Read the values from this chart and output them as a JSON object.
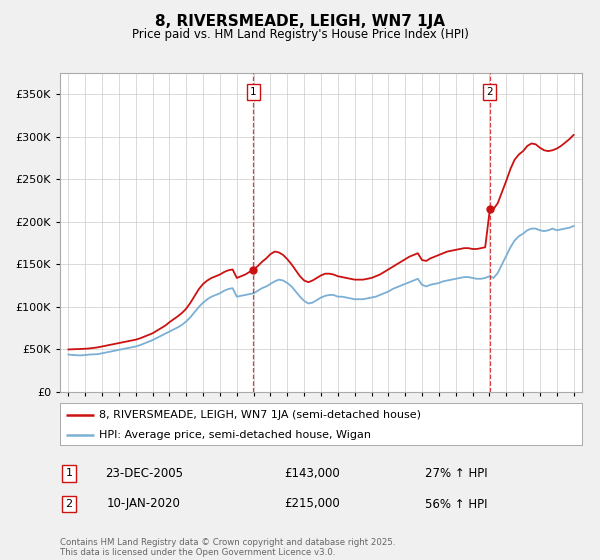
{
  "title": "8, RIVERSMEADE, LEIGH, WN7 1JA",
  "subtitle": "Price paid vs. HM Land Registry's House Price Index (HPI)",
  "ytick_values": [
    0,
    50000,
    100000,
    150000,
    200000,
    250000,
    300000,
    350000
  ],
  "ylim": [
    0,
    375000
  ],
  "xlim_start": 1994.5,
  "xlim_end": 2025.5,
  "sale1_date": 2005.98,
  "sale1_price": 143000,
  "sale1_label": "1",
  "sale2_date": 2020.03,
  "sale2_price": 215000,
  "sale2_label": "2",
  "hpi_color": "#7bafd4",
  "price_color": "#cc1111",
  "vline_color": "#cc1111",
  "legend_house": "8, RIVERSMEADE, LEIGH, WN7 1JA (semi-detached house)",
  "legend_hpi": "HPI: Average price, semi-detached house, Wigan",
  "annotation1_date": "23-DEC-2005",
  "annotation1_price": "£143,000",
  "annotation1_hpi": "27% ↑ HPI",
  "annotation2_date": "10-JAN-2020",
  "annotation2_price": "£215,000",
  "annotation2_hpi": "56% ↑ HPI",
  "footnote": "Contains HM Land Registry data © Crown copyright and database right 2025.\nThis data is licensed under the Open Government Licence v3.0.",
  "bg_color": "#f0f0f0",
  "plot_bg_color": "#ffffff",
  "hpi_data": [
    [
      1995.0,
      44000
    ],
    [
      1995.25,
      43500
    ],
    [
      1995.5,
      43200
    ],
    [
      1995.75,
      43000
    ],
    [
      1996.0,
      43500
    ],
    [
      1996.25,
      44000
    ],
    [
      1996.5,
      44200
    ],
    [
      1996.75,
      44500
    ],
    [
      1997.0,
      45500
    ],
    [
      1997.25,
      46500
    ],
    [
      1997.5,
      47500
    ],
    [
      1997.75,
      48500
    ],
    [
      1998.0,
      49500
    ],
    [
      1998.25,
      50500
    ],
    [
      1998.5,
      51500
    ],
    [
      1998.75,
      52500
    ],
    [
      1999.0,
      53500
    ],
    [
      1999.25,
      55000
    ],
    [
      1999.5,
      57000
    ],
    [
      1999.75,
      59000
    ],
    [
      2000.0,
      61000
    ],
    [
      2000.25,
      63500
    ],
    [
      2000.5,
      66000
    ],
    [
      2000.75,
      68500
    ],
    [
      2001.0,
      71000
    ],
    [
      2001.25,
      73500
    ],
    [
      2001.5,
      76000
    ],
    [
      2001.75,
      79000
    ],
    [
      2002.0,
      83000
    ],
    [
      2002.25,
      88000
    ],
    [
      2002.5,
      94000
    ],
    [
      2002.75,
      100000
    ],
    [
      2003.0,
      105000
    ],
    [
      2003.25,
      109000
    ],
    [
      2003.5,
      112000
    ],
    [
      2003.75,
      114000
    ],
    [
      2004.0,
      116000
    ],
    [
      2004.25,
      119000
    ],
    [
      2004.5,
      121000
    ],
    [
      2004.75,
      122000
    ],
    [
      2005.0,
      112000
    ],
    [
      2005.25,
      113000
    ],
    [
      2005.5,
      114000
    ],
    [
      2005.75,
      115000
    ],
    [
      2006.0,
      116000
    ],
    [
      2006.25,
      119000
    ],
    [
      2006.5,
      122000
    ],
    [
      2006.75,
      124000
    ],
    [
      2007.0,
      127000
    ],
    [
      2007.25,
      130000
    ],
    [
      2007.5,
      132000
    ],
    [
      2007.75,
      131000
    ],
    [
      2008.0,
      128000
    ],
    [
      2008.25,
      124000
    ],
    [
      2008.5,
      118000
    ],
    [
      2008.75,
      112000
    ],
    [
      2009.0,
      107000
    ],
    [
      2009.25,
      104000
    ],
    [
      2009.5,
      105000
    ],
    [
      2009.75,
      108000
    ],
    [
      2010.0,
      111000
    ],
    [
      2010.25,
      113000
    ],
    [
      2010.5,
      114000
    ],
    [
      2010.75,
      114000
    ],
    [
      2011.0,
      112000
    ],
    [
      2011.25,
      112000
    ],
    [
      2011.5,
      111000
    ],
    [
      2011.75,
      110000
    ],
    [
      2012.0,
      109000
    ],
    [
      2012.25,
      109000
    ],
    [
      2012.5,
      109000
    ],
    [
      2012.75,
      110000
    ],
    [
      2013.0,
      111000
    ],
    [
      2013.25,
      112000
    ],
    [
      2013.5,
      114000
    ],
    [
      2013.75,
      116000
    ],
    [
      2014.0,
      118000
    ],
    [
      2014.25,
      121000
    ],
    [
      2014.5,
      123000
    ],
    [
      2014.75,
      125000
    ],
    [
      2015.0,
      127000
    ],
    [
      2015.25,
      129000
    ],
    [
      2015.5,
      131000
    ],
    [
      2015.75,
      133000
    ],
    [
      2016.0,
      126000
    ],
    [
      2016.25,
      124000
    ],
    [
      2016.5,
      126000
    ],
    [
      2016.75,
      127000
    ],
    [
      2017.0,
      128000
    ],
    [
      2017.25,
      130000
    ],
    [
      2017.5,
      131000
    ],
    [
      2017.75,
      132000
    ],
    [
      2018.0,
      133000
    ],
    [
      2018.25,
      134000
    ],
    [
      2018.5,
      135000
    ],
    [
      2018.75,
      135000
    ],
    [
      2019.0,
      134000
    ],
    [
      2019.25,
      133000
    ],
    [
      2019.5,
      133000
    ],
    [
      2019.75,
      134000
    ],
    [
      2020.0,
      136000
    ],
    [
      2020.25,
      134000
    ],
    [
      2020.5,
      140000
    ],
    [
      2020.75,
      150000
    ],
    [
      2021.0,
      160000
    ],
    [
      2021.25,
      170000
    ],
    [
      2021.5,
      178000
    ],
    [
      2021.75,
      183000
    ],
    [
      2022.0,
      186000
    ],
    [
      2022.25,
      190000
    ],
    [
      2022.5,
      192000
    ],
    [
      2022.75,
      192000
    ],
    [
      2023.0,
      190000
    ],
    [
      2023.25,
      189000
    ],
    [
      2023.5,
      190000
    ],
    [
      2023.75,
      192000
    ],
    [
      2024.0,
      190000
    ],
    [
      2024.25,
      191000
    ],
    [
      2024.5,
      192000
    ],
    [
      2024.75,
      193000
    ],
    [
      2025.0,
      195000
    ]
  ],
  "price_data": [
    [
      1995.0,
      50000
    ],
    [
      1995.25,
      50200
    ],
    [
      1995.5,
      50400
    ],
    [
      1995.75,
      50600
    ],
    [
      1996.0,
      50800
    ],
    [
      1996.25,
      51200
    ],
    [
      1996.5,
      51800
    ],
    [
      1996.75,
      52500
    ],
    [
      1997.0,
      53500
    ],
    [
      1997.25,
      54500
    ],
    [
      1997.5,
      55500
    ],
    [
      1997.75,
      56500
    ],
    [
      1998.0,
      57500
    ],
    [
      1998.25,
      58500
    ],
    [
      1998.5,
      59500
    ],
    [
      1998.75,
      60500
    ],
    [
      1999.0,
      61500
    ],
    [
      1999.25,
      63000
    ],
    [
      1999.5,
      65000
    ],
    [
      1999.75,
      67000
    ],
    [
      2000.0,
      69000
    ],
    [
      2000.25,
      72000
    ],
    [
      2000.5,
      75000
    ],
    [
      2000.75,
      78000
    ],
    [
      2001.0,
      82000
    ],
    [
      2001.25,
      85500
    ],
    [
      2001.5,
      89000
    ],
    [
      2001.75,
      93000
    ],
    [
      2002.0,
      98000
    ],
    [
      2002.25,
      105000
    ],
    [
      2002.5,
      113000
    ],
    [
      2002.75,
      121000
    ],
    [
      2003.0,
      127000
    ],
    [
      2003.25,
      131000
    ],
    [
      2003.5,
      134000
    ],
    [
      2003.75,
      136000
    ],
    [
      2004.0,
      138000
    ],
    [
      2004.25,
      141000
    ],
    [
      2004.5,
      143000
    ],
    [
      2004.75,
      144000
    ],
    [
      2005.0,
      134000
    ],
    [
      2005.25,
      136000
    ],
    [
      2005.5,
      138000
    ],
    [
      2005.75,
      141000
    ],
    [
      2005.98,
      143000
    ],
    [
      2006.0,
      144000
    ],
    [
      2006.25,
      148000
    ],
    [
      2006.5,
      153000
    ],
    [
      2006.75,
      157000
    ],
    [
      2007.0,
      162000
    ],
    [
      2007.25,
      165000
    ],
    [
      2007.5,
      164000
    ],
    [
      2007.75,
      161000
    ],
    [
      2008.0,
      156000
    ],
    [
      2008.25,
      150000
    ],
    [
      2008.5,
      143000
    ],
    [
      2008.75,
      136000
    ],
    [
      2009.0,
      131000
    ],
    [
      2009.25,
      129000
    ],
    [
      2009.5,
      131000
    ],
    [
      2009.75,
      134000
    ],
    [
      2010.0,
      137000
    ],
    [
      2010.25,
      139000
    ],
    [
      2010.5,
      139000
    ],
    [
      2010.75,
      138000
    ],
    [
      2011.0,
      136000
    ],
    [
      2011.25,
      135000
    ],
    [
      2011.5,
      134000
    ],
    [
      2011.75,
      133000
    ],
    [
      2012.0,
      132000
    ],
    [
      2012.25,
      132000
    ],
    [
      2012.5,
      132000
    ],
    [
      2012.75,
      133000
    ],
    [
      2013.0,
      134000
    ],
    [
      2013.25,
      136000
    ],
    [
      2013.5,
      138000
    ],
    [
      2013.75,
      141000
    ],
    [
      2014.0,
      144000
    ],
    [
      2014.25,
      147000
    ],
    [
      2014.5,
      150000
    ],
    [
      2014.75,
      153000
    ],
    [
      2015.0,
      156000
    ],
    [
      2015.25,
      159000
    ],
    [
      2015.5,
      161000
    ],
    [
      2015.75,
      163000
    ],
    [
      2016.0,
      155000
    ],
    [
      2016.25,
      154000
    ],
    [
      2016.5,
      157000
    ],
    [
      2016.75,
      159000
    ],
    [
      2017.0,
      161000
    ],
    [
      2017.25,
      163000
    ],
    [
      2017.5,
      165000
    ],
    [
      2017.75,
      166000
    ],
    [
      2018.0,
      167000
    ],
    [
      2018.25,
      168000
    ],
    [
      2018.5,
      169000
    ],
    [
      2018.75,
      169000
    ],
    [
      2019.0,
      168000
    ],
    [
      2019.25,
      168000
    ],
    [
      2019.5,
      169000
    ],
    [
      2019.75,
      170000
    ],
    [
      2020.03,
      215000
    ],
    [
      2020.25,
      215000
    ],
    [
      2020.5,
      222000
    ],
    [
      2020.75,
      235000
    ],
    [
      2021.0,
      248000
    ],
    [
      2021.25,
      262000
    ],
    [
      2021.5,
      273000
    ],
    [
      2021.75,
      279000
    ],
    [
      2022.0,
      283000
    ],
    [
      2022.25,
      289000
    ],
    [
      2022.5,
      292000
    ],
    [
      2022.75,
      291000
    ],
    [
      2023.0,
      287000
    ],
    [
      2023.25,
      284000
    ],
    [
      2023.5,
      283000
    ],
    [
      2023.75,
      284000
    ],
    [
      2024.0,
      286000
    ],
    [
      2024.25,
      289000
    ],
    [
      2024.5,
      293000
    ],
    [
      2024.75,
      297000
    ],
    [
      2025.0,
      302000
    ]
  ]
}
